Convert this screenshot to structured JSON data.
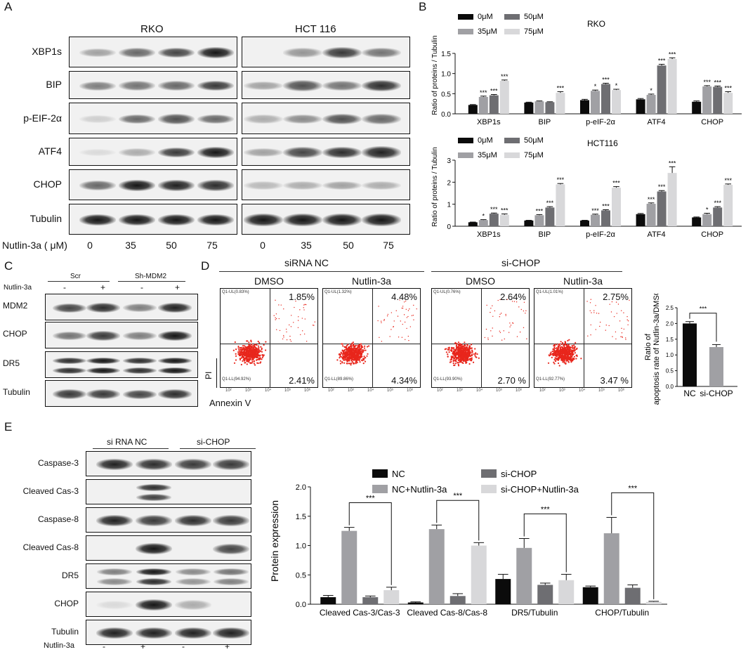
{
  "panel_labels": {
    "a": "A",
    "b": "B",
    "c": "C",
    "d": "D",
    "e": "E"
  },
  "panelA": {
    "cell_lines": [
      "RKO",
      "HCT 116"
    ],
    "rows": [
      "XBP1s",
      "BIP",
      "p-EIF-2α",
      "ATF4",
      "CHOP",
      "Tubulin"
    ],
    "dose_label": "Nutlin-3a ( μM)",
    "doses": [
      "0",
      "35",
      "50",
      "75",
      "0",
      "35",
      "50",
      "75"
    ]
  },
  "panelB": {
    "ylabel": "Ratio of proteins / Tubulin",
    "legend": [
      "0μM",
      "35μM",
      "50μM",
      "75μM"
    ],
    "titles": [
      "RKO",
      "HCT116"
    ]
  },
  "panelC": {
    "groups": [
      "Scr",
      "Sh-MDM2"
    ],
    "treat_label": "Nutlin-3a",
    "signs": [
      "-",
      "+",
      "-",
      "+"
    ],
    "rows": [
      "MDM2",
      "CHOP",
      "DR5",
      "Tubulin"
    ]
  },
  "panelD": {
    "groups": [
      "siRNA NC",
      "si-CHOP"
    ],
    "plots": [
      {
        "title": "DMSO",
        "ul_tag": "Q1-UL(0.83%)",
        "ur": "1.85%",
        "lr": "2.41%",
        "ll_tag": "Q1-LL(94.92%)"
      },
      {
        "title": "Nutlin-3a",
        "ul_tag": "Q1-UL(1.32%)",
        "ur": "4.48%",
        "lr": "4.34%",
        "ll_tag": "Q1-LL(89.86%)"
      },
      {
        "title": "DMSO",
        "ul_tag": "Q1-UL(0.76%)",
        "ur": "2.64%",
        "lr": "2.70 %",
        "ll_tag": "Q1-LL(93.90%)"
      },
      {
        "title": "Nutlin-3a",
        "ul_tag": "Q1-UL(1.01%)",
        "ur": "2.75%",
        "lr": "3.47 %",
        "ll_tag": "Q1-LL(92.77%)"
      }
    ],
    "xaxis": "Annexin V",
    "yaxis": "PI",
    "ticks": [
      "10²",
      "10³",
      "10⁴",
      "10⁵",
      "10⁶"
    ]
  },
  "panelE": {
    "groups": [
      "si RNA NC",
      "si-CHOP"
    ],
    "rows": [
      "Caspase-3",
      "Cleaved Cas-3",
      "Caspase-8",
      "Cleaved Cas-8",
      "DR5",
      "CHOP",
      "Tubulin"
    ],
    "treat_label": "Nutlin-3a",
    "signs": [
      "-",
      "+",
      "-",
      "+"
    ]
  },
  "colors": {
    "black": "#0b0b0b",
    "gray1": "#a0a0a4",
    "gray2": "#6e6e72",
    "gray3": "#d8d8da",
    "red": "#e8261c"
  },
  "chart_data": [
    {
      "type": "bar",
      "title": "RKO",
      "ylabel": "Ratio of proteins / Tubulin",
      "ylim": [
        0,
        1.5
      ],
      "yticks": [
        "0.0",
        "0.5",
        "1.0",
        "1.5"
      ],
      "categories": [
        "XBP1s",
        "BIP",
        "p-eIF-2α",
        "ATF4",
        "CHOP"
      ],
      "series": [
        {
          "name": "0μM",
          "values": [
            0.22,
            0.28,
            0.34,
            0.36,
            0.3
          ],
          "err": [
            0.01,
            0.01,
            0.02,
            0.02,
            0.02
          ]
        },
        {
          "name": "35μM",
          "values": [
            0.42,
            0.31,
            0.57,
            0.47,
            0.68
          ],
          "err": [
            0.02,
            0.01,
            0.02,
            0.02,
            0.02
          ]
        },
        {
          "name": "50μM",
          "values": [
            0.46,
            0.29,
            0.74,
            1.2,
            0.67
          ],
          "err": [
            0.02,
            0.01,
            0.02,
            0.03,
            0.02
          ]
        },
        {
          "name": "75μM",
          "values": [
            0.82,
            0.52,
            0.59,
            1.36,
            0.52
          ],
          "err": [
            0.02,
            0.03,
            0.02,
            0.03,
            0.03
          ]
        }
      ],
      "significance": [
        [
          "",
          "***",
          "***",
          "***"
        ],
        [
          "",
          "",
          "",
          "***"
        ],
        [
          "",
          "*",
          "***",
          "*"
        ],
        [
          "",
          "*",
          "***",
          "***"
        ],
        [
          "",
          "***",
          "***",
          "***"
        ]
      ]
    },
    {
      "type": "bar",
      "title": "HCT116",
      "ylabel": "Ratio of proteins / Tubulin",
      "ylim": [
        0,
        3
      ],
      "yticks": [
        "0",
        "1",
        "2",
        "3"
      ],
      "categories": [
        "XBP1s",
        "BIP",
        "p-eIF-2α",
        "ATF4",
        "CHOP"
      ],
      "series": [
        {
          "name": "0μM",
          "values": [
            0.18,
            0.26,
            0.26,
            0.55,
            0.4
          ],
          "err": [
            0.01,
            0.01,
            0.01,
            0.03,
            0.02
          ]
        },
        {
          "name": "35μM",
          "values": [
            0.28,
            0.5,
            0.52,
            1.02,
            0.55
          ],
          "err": [
            0.02,
            0.03,
            0.03,
            0.04,
            0.04
          ]
        },
        {
          "name": "50μM",
          "values": [
            0.57,
            0.85,
            0.72,
            1.58,
            0.85
          ],
          "err": [
            0.03,
            0.04,
            0.03,
            0.04,
            0.04
          ]
        },
        {
          "name": "75μM",
          "values": [
            0.52,
            1.9,
            1.75,
            2.42,
            1.88
          ],
          "err": [
            0.04,
            0.04,
            0.05,
            0.28,
            0.04
          ]
        }
      ],
      "significance": [
        [
          "",
          "*",
          "***",
          "***"
        ],
        [
          "",
          "***",
          "***",
          "***"
        ],
        [
          "",
          "***",
          "***",
          "***"
        ],
        [
          "",
          "***",
          "***",
          "***"
        ],
        [
          "",
          "*",
          "***",
          "***"
        ]
      ]
    },
    {
      "type": "bar",
      "ylabel": "Ratio of apoptosis rate of Nutlin-3a/DMSO",
      "ylim": [
        0,
        2.5
      ],
      "yticks": [
        "0.0",
        "0.5",
        "1.0",
        "1.5",
        "2.0",
        "2.5"
      ],
      "categories": [
        "NC",
        "si-CHOP"
      ],
      "values": [
        2.0,
        1.25
      ],
      "err": [
        0.06,
        0.08
      ],
      "colors": [
        "#0b0b0b",
        "#a0a0a4"
      ],
      "significance": "***"
    },
    {
      "type": "bar",
      "ylabel": "Protein expression",
      "ylim": [
        0,
        2.0
      ],
      "yticks": [
        "0.0",
        "0.5",
        "1.0",
        "1.5",
        "2.0"
      ],
      "categories": [
        "Cleaved Cas-3/Cas-3",
        "Cleaved Cas-8/Cas-8",
        "DR5/Tubulin",
        "CHOP/Tubulin"
      ],
      "series": [
        {
          "name": "NC",
          "values": [
            0.12,
            0.03,
            0.43,
            0.29
          ],
          "err": [
            0.03,
            0.01,
            0.08,
            0.02
          ]
        },
        {
          "name": "NC+Nutlin-3a",
          "values": [
            1.25,
            1.28,
            0.96,
            1.21
          ],
          "err": [
            0.06,
            0.07,
            0.16,
            0.27
          ]
        },
        {
          "name": "si-CHOP",
          "values": [
            0.12,
            0.14,
            0.33,
            0.28
          ],
          "err": [
            0.02,
            0.04,
            0.03,
            0.05
          ]
        },
        {
          "name": "si-CHOP+Nutlin-3a",
          "values": [
            0.24,
            1.0,
            0.41,
            0.04
          ],
          "err": [
            0.05,
            0.05,
            0.1,
            0.01
          ]
        }
      ],
      "significance": [
        "***",
        "***",
        "***",
        "***"
      ]
    }
  ]
}
